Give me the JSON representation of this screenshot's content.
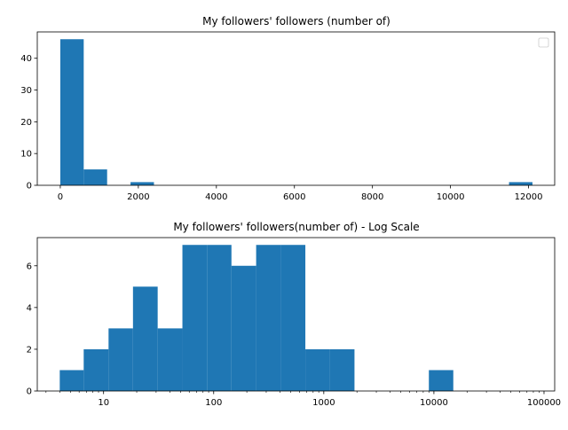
{
  "chart_data": [
    {
      "type": "bar",
      "title": "My followers' followers (number of)",
      "xlabel": "",
      "ylabel": "",
      "xlim": [
        -590,
        12670
      ],
      "ylim": [
        0,
        48.3
      ],
      "bin_width": 600,
      "bins": [
        {
          "x0": 0,
          "x1": 600,
          "count": 46
        },
        {
          "x0": 600,
          "x1": 1200,
          "count": 5
        },
        {
          "x0": 1800,
          "x1": 2400,
          "count": 1
        },
        {
          "x0": 11500,
          "x1": 12100,
          "count": 1
        }
      ],
      "xticks": [
        0,
        2000,
        4000,
        6000,
        8000,
        10000,
        12000
      ],
      "xtick_labels": [
        "0",
        "2000",
        "4000",
        "6000",
        "8000",
        "10000",
        "12000"
      ],
      "yticks": [
        0,
        10,
        20,
        30,
        40
      ],
      "ytick_labels": [
        "0",
        "10",
        "20",
        "30",
        "40"
      ],
      "legend": "top-right (empty)",
      "color": "#1f77b4",
      "grid": false
    },
    {
      "type": "bar",
      "title": "My followers' followers(number of) - Log Scale",
      "xlabel": "",
      "ylabel": "",
      "xscale": "log",
      "xlim": [
        2.5,
        125000
      ],
      "ylim": [
        0,
        7.35
      ],
      "bins": [
        {
          "x0": 4,
          "x1": 6.6,
          "count": 1
        },
        {
          "x0": 6.6,
          "x1": 11.1,
          "count": 2
        },
        {
          "x0": 11.1,
          "x1": 18.5,
          "count": 3
        },
        {
          "x0": 18.5,
          "x1": 31,
          "count": 5
        },
        {
          "x0": 31,
          "x1": 52,
          "count": 3
        },
        {
          "x0": 52,
          "x1": 87,
          "count": 7
        },
        {
          "x0": 87,
          "x1": 145,
          "count": 7
        },
        {
          "x0": 145,
          "x1": 243,
          "count": 6
        },
        {
          "x0": 243,
          "x1": 407,
          "count": 7
        },
        {
          "x0": 407,
          "x1": 680,
          "count": 7
        },
        {
          "x0": 680,
          "x1": 1140,
          "count": 2
        },
        {
          "x0": 1140,
          "x1": 1900,
          "count": 2
        },
        {
          "x0": 9000,
          "x1": 15000,
          "count": 1
        }
      ],
      "xticks": [
        10,
        100,
        1000,
        10000,
        100000
      ],
      "xtick_labels": [
        "10",
        "100",
        "1000",
        "10000",
        "100000"
      ],
      "yticks": [
        0,
        2,
        4,
        6
      ],
      "ytick_labels": [
        "0",
        "2",
        "4",
        "6"
      ],
      "color": "#1f77b4",
      "grid": false
    }
  ]
}
